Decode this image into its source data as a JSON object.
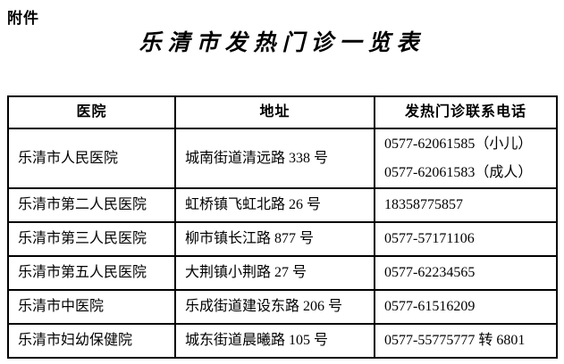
{
  "page": {
    "attachment_label": "附件",
    "title": "乐清市发热门诊一览表"
  },
  "table": {
    "headers": [
      "医院",
      "地址",
      "发热门诊联系电话"
    ],
    "rows": [
      {
        "hospital": "乐清市人民医院",
        "address": "城南街道清远路 338 号",
        "phones": [
          "0577-62061585（小儿）",
          "0577-62061583（成人）"
        ]
      },
      {
        "hospital": "乐清市第二人民医院",
        "address": "虹桥镇飞虹北路 26 号",
        "phones": [
          "18358775857"
        ]
      },
      {
        "hospital": "乐清市第三人民医院",
        "address": "柳市镇长江路 877 号",
        "phones": [
          "0577-57171106"
        ]
      },
      {
        "hospital": "乐清市第五人民医院",
        "address": "大荆镇小荆路 27 号",
        "phones": [
          "0577-62234565"
        ]
      },
      {
        "hospital": "乐清市中医院",
        "address": "乐成街道建设东路 206 号",
        "phones": [
          "0577-61516209"
        ]
      },
      {
        "hospital": "乐清市妇幼保健院",
        "address": "城东街道晨曦路 105 号",
        "phones": [
          "0577-55775777 转 6801"
        ]
      }
    ]
  },
  "colors": {
    "border": "#000000",
    "text": "#000000",
    "background": "#ffffff"
  }
}
